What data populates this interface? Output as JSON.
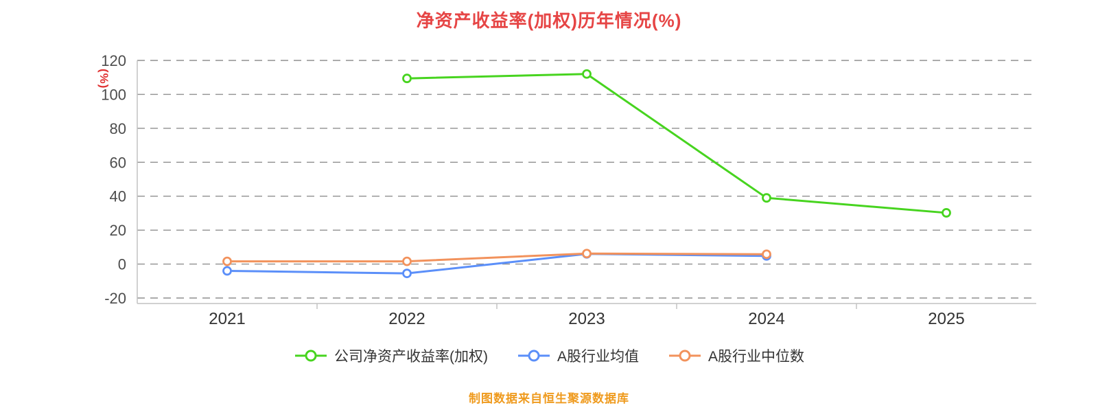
{
  "chart_data": {
    "type": "line",
    "title": "净资产收益率(加权)历年情况(%)",
    "ylabel": "(%)",
    "footnote": "制图数据来自恒生聚源数据库",
    "x_categories": [
      "2021",
      "2022",
      "2023",
      "2024",
      "2025"
    ],
    "ylim": [
      -20,
      120
    ],
    "yticks": [
      120,
      100,
      80,
      60,
      40,
      20,
      0,
      -20
    ],
    "grid": "horizontal-dashed",
    "legend_position": "bottom",
    "series": [
      {
        "name": "公司净资产收益率(加权)",
        "color": "#47d41f",
        "marker": "circle",
        "x": [
          "2022",
          "2023",
          "2024",
          "2025"
        ],
        "values": [
          109.4,
          112.0,
          39.0,
          30.2
        ]
      },
      {
        "name": "A股行业均值",
        "color": "#5b8ff9",
        "marker": "circle",
        "x": [
          "2021",
          "2022",
          "2023",
          "2024"
        ],
        "values": [
          -4.0,
          -5.5,
          6.0,
          4.8
        ]
      },
      {
        "name": "A股行业中位数",
        "color": "#f2925c",
        "marker": "circle",
        "x": [
          "2021",
          "2022",
          "2023",
          "2024"
        ],
        "values": [
          1.6,
          1.6,
          6.2,
          5.8
        ]
      }
    ],
    "colors": {
      "title": "#e64545",
      "ylabel": "#e03131",
      "grid": "#8f8f8f",
      "ytick": "#4d4d4d",
      "xtick": "#333333",
      "axis": "#c2c2c2",
      "footnote": "#ef9a1d",
      "legend_text": "#333333"
    }
  }
}
